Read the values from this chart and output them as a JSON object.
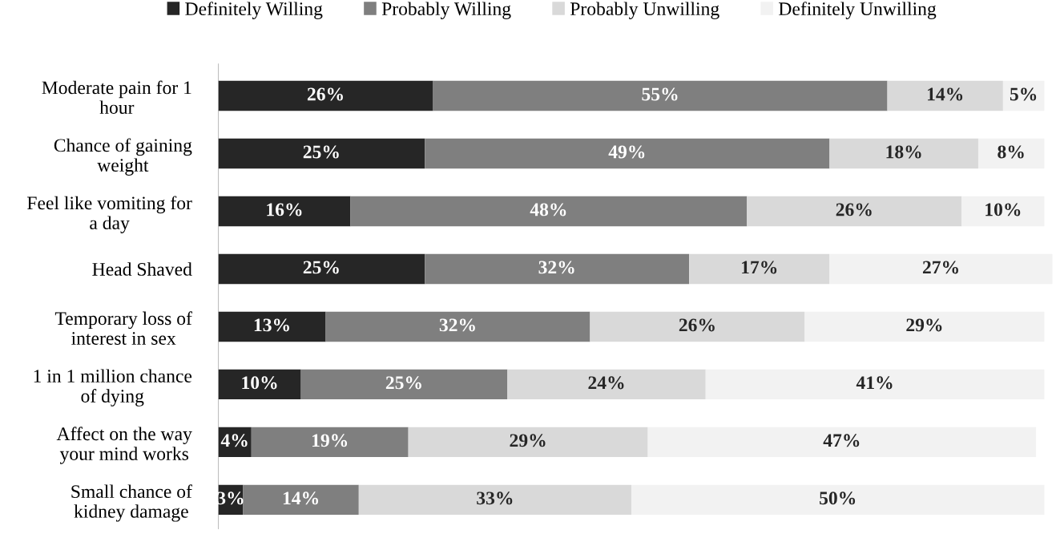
{
  "chart_data": {
    "type": "bar",
    "orientation": "horizontal",
    "stacked": true,
    "categories": [
      "Moderate pain for 1\nhour",
      "Chance of gaining\nweight",
      "Feel like vomiting for\na day",
      "Head Shaved",
      "Temporary loss of\ninterest in sex",
      "1 in 1 million chance\nof dying",
      "Affect on the way\nyour mind works",
      "Small chance of\nkidney damage"
    ],
    "series": [
      {
        "name": "Definitely Willing",
        "color": "#262626",
        "values": [
          26,
          25,
          16,
          25,
          13,
          10,
          4,
          3
        ],
        "value_labels": [
          "26%",
          "25%",
          "16%",
          "25%",
          "13%",
          "10%",
          "4%",
          "3%"
        ]
      },
      {
        "name": "Probably Willing",
        "color": "#7f7f7f",
        "values": [
          55,
          49,
          48,
          32,
          32,
          25,
          19,
          14
        ],
        "value_labels": [
          "55%",
          "49%",
          "48%",
          "32%",
          "32%",
          "25%",
          "19%",
          "14%"
        ]
      },
      {
        "name": "Probably Unwilling",
        "color": "#d9d9d9",
        "values": [
          14,
          18,
          26,
          17,
          26,
          24,
          29,
          33
        ],
        "value_labels": [
          "14%",
          "18%",
          "26%",
          "17%",
          "26%",
          "24%",
          "29%",
          "33%"
        ]
      },
      {
        "name": "Definitely Unwilling",
        "color": "#f2f2f2",
        "values": [
          5,
          8,
          10,
          27,
          29,
          41,
          47,
          50
        ],
        "value_labels": [
          "5%",
          "8%",
          "10%",
          "27%",
          "29%",
          "41%",
          "47%",
          "50%"
        ]
      }
    ],
    "xlim": [
      0,
      101
    ],
    "tick_labels": "y",
    "grid": false,
    "legend": "top"
  }
}
